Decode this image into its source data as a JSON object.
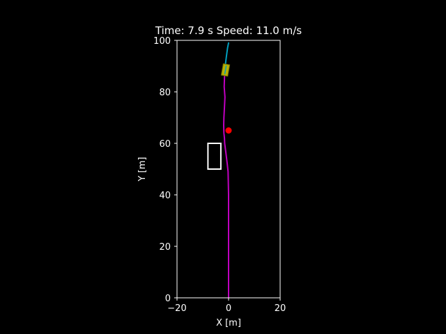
{
  "chart_data": {
    "type": "line",
    "title": "Time: 7.9 s Speed: 11.0 m/s",
    "xlabel": "X [m]",
    "ylabel": "Y [m]",
    "xlim": [
      -20,
      20
    ],
    "ylim": [
      0,
      100
    ],
    "xticks": [
      -20,
      0,
      20
    ],
    "xtick_labels": [
      "−20",
      "0",
      "20"
    ],
    "yticks": [
      0,
      20,
      40,
      60,
      80,
      100
    ],
    "ytick_labels": [
      "0",
      "20",
      "40",
      "60",
      "80",
      "100"
    ],
    "grid": false,
    "series": [
      {
        "role": "driven-path",
        "color": "#c000c0",
        "x": [
          0,
          0,
          0,
          0,
          0,
          -0.2,
          -0.5,
          -1.0,
          -1.5,
          -1.6,
          -1.8,
          -1.9,
          -1.8,
          -1.6,
          -1.4,
          -1.7,
          -1.6,
          -1.5
        ],
        "y": [
          0,
          10,
          20,
          30,
          40,
          49,
          52,
          56,
          60,
          62,
          64,
          67,
          70,
          74,
          78,
          82,
          85,
          88
        ]
      },
      {
        "role": "planned-path",
        "color": "#00a0c0",
        "x": [
          -1.5,
          -1.2,
          -0.8,
          -0.4,
          0
        ],
        "y": [
          88,
          91,
          94,
          97,
          99
        ]
      }
    ],
    "vehicle": {
      "x": -1.2,
      "y": 88.5,
      "width": 2,
      "length": 4.5,
      "color": "#b8b000"
    },
    "target_point": {
      "x": 0,
      "y": 65,
      "color": "#ff0000"
    },
    "obstacle": {
      "x0": -8,
      "x1": -3,
      "y0": 50,
      "y1": 60,
      "color": "#ffffff"
    }
  }
}
